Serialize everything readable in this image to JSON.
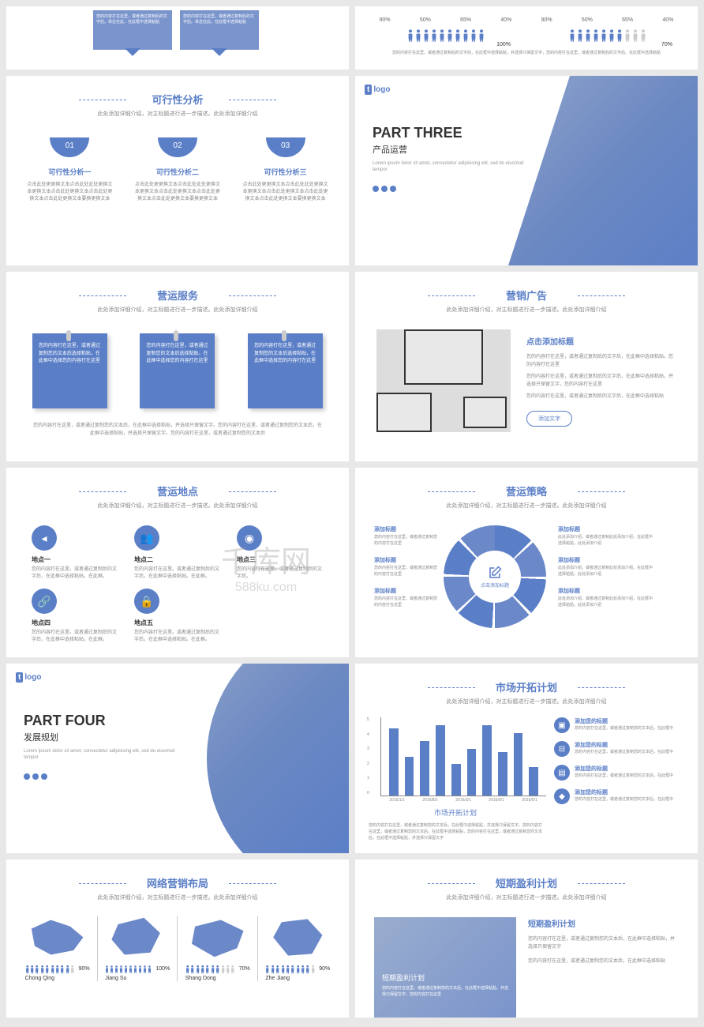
{
  "colors": {
    "primary": "#5b7fc7",
    "secondary": "#6b88c9",
    "text": "#888",
    "bg": "#ffffff"
  },
  "watermark": {
    "main": "千库网",
    "sub": "588ku.com"
  },
  "s1": {
    "text": "您的内容打在这里，或者通过复制后的文字后。单击在此，在此框中选择粘贴"
  },
  "s2": {
    "percents": [
      "90%",
      "50%",
      "65%",
      "40%"
    ],
    "people_left": {
      "total": 10,
      "filled": 10,
      "label": "100%"
    },
    "people_right": {
      "total": 10,
      "filled": 7,
      "label": "70%"
    },
    "desc": "您的内容打在这里，或者通过复制后的文字后，在此框中选择粘贴，并选择只保留文字，您的内容打在这里，或者通过复制后的文字后。在此框中选择粘贴"
  },
  "feasibility": {
    "title": "可行性分析",
    "sub": "此处添加详细介绍，对主标题进行进一步描述。此处添加详细介绍",
    "items": [
      {
        "num": "01",
        "title": "可行性分析一",
        "text": "点击此处更更换文本点击此处此处更换文本更换文本点击此处更换文本点击此处更换文本点击此处更换文本要换更换文本"
      },
      {
        "num": "02",
        "title": "可行性分析二",
        "text": "点击此处更更换文本点击此处此处更换文本更换文本点击此处更换文本点击此处更换文本点击此处更换文本要换更换文本"
      },
      {
        "num": "03",
        "title": "可行性分析三",
        "text": "点击此处更更换文本点击此处此处更换文本更换文本点击此处更换文本点击此处更换文本点击此处更换文本要换更换文本"
      }
    ]
  },
  "part3": {
    "logo": "logo",
    "title": "PART THREE",
    "sub": "产品运营",
    "desc": "Lorem ipsum dolor sit amet, consectetur adipisicing elit, sed do eiusmod tempor"
  },
  "service": {
    "title": "营运服务",
    "sub": "此处添加详细介绍，对主标题进行进一步描述。此处添加详细介绍",
    "notes": [
      "您的内容打在这里，或者通过复制您的文本后选择粘贴，在此框中选择您的内容打在这里",
      "您的内容打在这里，或者通过复制您的文本后选择粘贴，在此框中选择您的内容打在这里",
      "您的内容打在这里，或者通过复制您的文本后选择粘贴，在此框中选择您的内容打在这里"
    ],
    "bottom": "您的内容打在这里，或者通过复制您的文本后，在此框中选择粘贴，并选择只保留文字。您的内容打在这里，或者通过复制您的文本后，在此框中选择粘贴，并选择只保留文字。您的内容打在这里，或者通过复制您的文本后"
  },
  "ad": {
    "title": "营销广告",
    "sub": "此处添加详细介绍，对主标题进行进一步描述。此处添加详细介绍",
    "heading": "点击添加标题",
    "p1": "您的内容打在这里，或者通过复制后的文字后，在此框中选择粘贴。您的内容打在这里",
    "p2": "您的内容打在这里，或者通过复制后的文字后，在此框中选择粘贴，并选择只保留文字。您的内容打在这里",
    "p3": "您的内容打在这里，或者通过复制后的文字后，在此框中选择粘贴",
    "btn": "添加文字"
  },
  "location": {
    "title": "营运地点",
    "sub": "此处添加详细介绍，对主标题进行进一步描述。此处添加详细介绍",
    "items": [
      {
        "title": "地点一",
        "text": "您的内容打在这里。或者通过复制后的文字后，在此框中选择粘贴。在此框。"
      },
      {
        "title": "地点二",
        "text": "您的内容打在这里。或者通过复制后的文字后，在此框中选择粘贴。在此框。"
      },
      {
        "title": "地点三",
        "text": "您的内容打在这里。或者通过复制后的文字后。"
      },
      {
        "title": "地点四",
        "text": "您的内容打在这里。或者通过复制后的文字后，在此框中选择粘贴。在此框。"
      },
      {
        "title": "地点五",
        "text": "您的内容打在这里。或者通过复制后的文字后，在此框中选择粘贴。在此框。"
      }
    ]
  },
  "strategy": {
    "title": "营运策略",
    "sub": "此处添加详细介绍，对主标题进行进一步描述。此处添加详细介绍",
    "center": "点击添加标题",
    "left": [
      {
        "t": "添加标题",
        "d": "您的内容打在这里，或者通过复制您的内容打在这里"
      },
      {
        "t": "添加标题",
        "d": "您的内容打在这里，或者通过复制您的内容打在这里"
      },
      {
        "t": "添加标题",
        "d": "您的内容打在这里，或者通过复制您的内容打在这里"
      }
    ],
    "right": [
      {
        "t": "添加标题",
        "d": "此处添加介绍，或者通过复制此处添加介绍，在此框中选择粘贴。此处添加介绍"
      },
      {
        "t": "添加标题",
        "d": "此处添加介绍，或者通过复制此处添加介绍，在此框中选择粘贴。此处添加介绍"
      },
      {
        "t": "添加标题",
        "d": "此处添加介绍，或者通过复制此处添加介绍，在此框中选择粘贴。此处添加介绍"
      }
    ]
  },
  "part4": {
    "logo": "logo",
    "title": "PART FOUR",
    "sub": "发展规划",
    "desc": "Lorem ipsum dolor sit amet, consectetur adipisicing elit, sed do eiusmod tempor"
  },
  "market": {
    "title": "市场开拓计划",
    "sub": "此处添加详细介绍，对主标题进行进一步描述。此处添加详细介绍",
    "chart": {
      "type": "bar",
      "ylim": [
        0,
        5
      ],
      "ytick": [
        1,
        2,
        3,
        4,
        5
      ],
      "x": [
        "2016/1/1",
        "2016/8/1",
        "2016/3/1",
        "2016/9/1",
        "2016/5/1"
      ],
      "values": [
        4.3,
        2.5,
        3.5,
        4.5,
        2.0,
        3.0,
        4.5,
        2.8,
        4.0,
        1.8
      ],
      "bar_color": "#5b7fc7"
    },
    "chart_title": "市场开拓计划",
    "chart_desc": "您的内容打在这里，或者通过复制您的文本后，在此框中选择粘贴，并选择只保留文字。您的内容打在这里，或者通过复制您的文本后。在此框中选择粘贴，您的内容打在这里，或者通过复制您的文本后，在此框中选择粘贴，并选择只保留文字",
    "items": [
      {
        "t": "添加您的标题",
        "d": "您的内容打在这里，或者通过复制您的文本后，在此框中"
      },
      {
        "t": "添加您的标题",
        "d": "您的内容打在这里，或者通过复制您的文本后，在此框中"
      },
      {
        "t": "添加您的标题",
        "d": "您的内容打在这里，或者通过复制您的文本后，在此框中"
      },
      {
        "t": "添加您的标题",
        "d": "您的内容打在这里，或者通过复制您的文本后，在此框中"
      }
    ]
  },
  "network": {
    "title": "网络营销布局",
    "sub": "此处添加详细介绍，对主标题进行进一步描述。此处添加详细介绍",
    "items": [
      {
        "name": "Chong Qing",
        "pct": "90%",
        "filled": 9
      },
      {
        "name": "Jiang Su",
        "pct": "100%",
        "filled": 10
      },
      {
        "name": "Shang Dong",
        "pct": "70%",
        "filled": 7
      },
      {
        "name": "Zhe Jiang",
        "pct": "90%",
        "filled": 9
      }
    ]
  },
  "profit": {
    "title": "短期盈利计划",
    "sub": "此处添加详细介绍，对主标题进行进一步描述。此处添加详细介绍",
    "img_title": "短期盈利计划",
    "img_text": "您的内容打在这里，或者通过复制您的文本后，在此框中选择粘贴。并选择只保留文字，您的内容打在这里",
    "heading": "短期盈利计划",
    "p1": "您的内容打在这里，或者通过复制您的文本后，在此框中选择粘贴，并选择只保留文字",
    "p2": "您的内容打在这里，或者通过复制您的文本后，在此框中选择粘贴"
  }
}
